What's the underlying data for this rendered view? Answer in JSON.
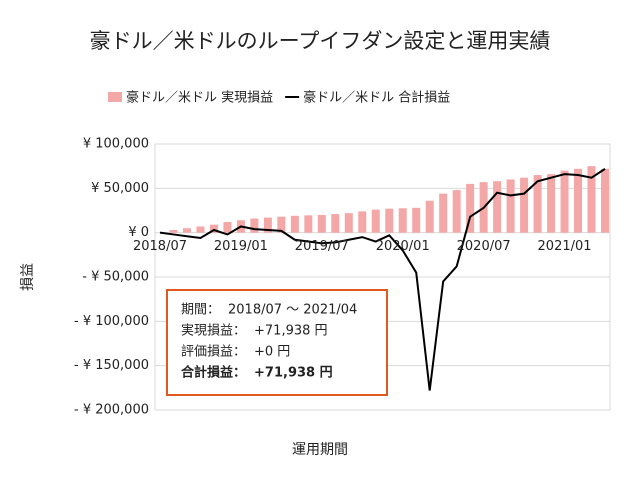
{
  "chart_data": {
    "type": "bar_line",
    "title": "豪ドル／米ドルのループイフダン設定と運用実績",
    "x_label": "運用期間",
    "y_label": "損益",
    "categories": [
      "2018/07",
      null,
      null,
      null,
      null,
      null,
      "2019/01",
      null,
      null,
      null,
      null,
      null,
      "2019/07",
      null,
      null,
      null,
      null,
      null,
      "2020/01",
      null,
      null,
      null,
      null,
      null,
      "2020/07",
      null,
      null,
      null,
      null,
      null,
      "2021/01",
      null,
      null,
      null
    ],
    "series": [
      {
        "name": "豪ドル／米ドル 実現損益",
        "kind": "bar",
        "color": "#f4a7a7",
        "values": [
          0,
          3000,
          5000,
          7000,
          9000,
          12000,
          14000,
          16000,
          17000,
          18000,
          19000,
          19500,
          20000,
          21000,
          22000,
          24000,
          26000,
          27000,
          27500,
          28000,
          36000,
          44000,
          48000,
          55000,
          57000,
          58000,
          60000,
          62000,
          65000,
          66000,
          70000,
          72000,
          75000,
          71938
        ]
      },
      {
        "name": "豪ドル／米ドル 合計損益",
        "kind": "line",
        "color": "#000000",
        "values": [
          0,
          -2000,
          -4000,
          -6000,
          3000,
          -2000,
          7000,
          4000,
          3000,
          2000,
          -8000,
          -10000,
          -12000,
          -11000,
          -8000,
          -5000,
          -10000,
          -3000,
          -20000,
          -45000,
          -178000,
          -55000,
          -38000,
          18000,
          28000,
          45000,
          42000,
          44000,
          58000,
          62000,
          66000,
          65000,
          62000,
          71938
        ]
      }
    ],
    "ylim": [
      -200000,
      100000
    ],
    "yticks": [
      {
        "value": 100000,
        "label": "¥ 100,000"
      },
      {
        "value": 50000,
        "label": "¥ 50,000"
      },
      {
        "value": 0,
        "label": "¥ 0"
      },
      {
        "value": -50000,
        "label": "- ¥ 50,000"
      },
      {
        "value": -100000,
        "label": "- ¥ 100,000"
      },
      {
        "value": -150000,
        "label": "- ¥ 150,000"
      },
      {
        "value": -200000,
        "label": "- ¥ 200,000"
      }
    ],
    "grid": true,
    "negative_tick_color": "#e0301e",
    "annotation": {
      "border_color": "#e05a1e",
      "highlight_color": "#e05a1e",
      "lines": [
        {
          "label": "期間：",
          "value": "2018/07 ～ 2021/04"
        },
        {
          "label": "実現損益：",
          "value": "+71,938 円"
        },
        {
          "label": "評価損益：",
          "value": "+0 円"
        },
        {
          "label": "合計損益：",
          "value": "+71,938 円"
        }
      ]
    }
  }
}
